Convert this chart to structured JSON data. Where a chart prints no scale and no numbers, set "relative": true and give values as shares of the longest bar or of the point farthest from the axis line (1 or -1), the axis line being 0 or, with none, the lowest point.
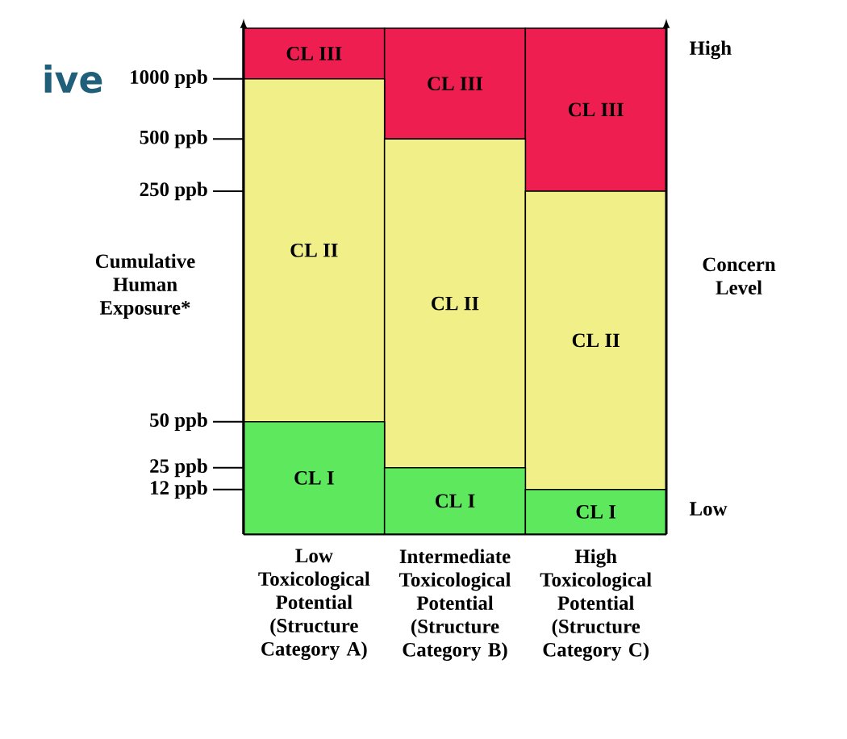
{
  "chart_data": {
    "type": "bar",
    "stacked": true,
    "relative": true,
    "categories": [
      "Low Toxicological Potential (Structure Category A)",
      "Intermediate Toxicological Potential (Structure Category B)",
      "High Toxicological Potential (Structure Category C)"
    ],
    "series": [
      {
        "name": "CL I",
        "color": "#5ee85e",
        "values": [
          0.222,
          0.131,
          0.088
        ]
      },
      {
        "name": "CL II",
        "color": "#f0ef88",
        "values": [
          0.678,
          0.65,
          0.59
        ]
      },
      {
        "name": "CL III",
        "color": "#ee1e50",
        "values": [
          0.1,
          0.219,
          0.322
        ]
      }
    ],
    "ylabel": "Cumulative Human Exposure*",
    "y2label": "Concern Level",
    "annotations": [
      "1000 ppb",
      "500 ppb",
      "250 ppb",
      "50 ppb",
      "25 ppb",
      "12 ppb",
      "High",
      "Low",
      "ive"
    ]
  }
}
